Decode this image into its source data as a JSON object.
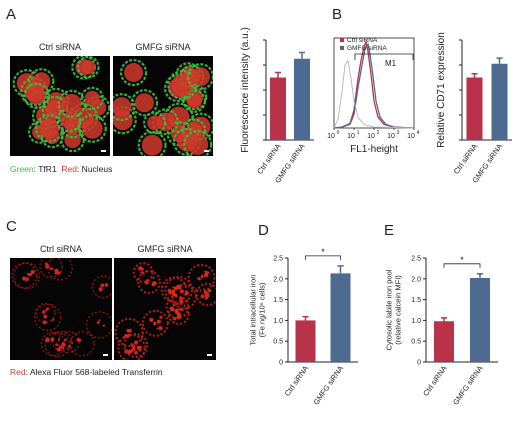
{
  "colors": {
    "ctrl": "#b8334a",
    "gmfg": "#4d6a90",
    "green": "#3fbf3f",
    "red": "#d03a2a"
  },
  "panels": {
    "A": {
      "letter": "A",
      "images": {
        "left_label": "Ctrl siRNA",
        "right_label": "GMFG siRNA"
      },
      "legend": {
        "green_word": "Green",
        "green_target": ": TfR1",
        "red_word": "Red",
        "red_target": ": Nucleus"
      }
    },
    "B": {
      "letter": "B",
      "legend": [
        "Ctrl siRNA",
        "GMFG siRNA"
      ],
      "gate_label": "M1",
      "xlabel": "FL1-height",
      "xticks": [
        "10",
        "10",
        "10",
        "10",
        "10"
      ],
      "xtick_exp": [
        "0",
        "1",
        "2",
        "3",
        "4"
      ]
    },
    "C": {
      "letter": "C",
      "images": {
        "left_label": "Ctrl siRNA",
        "right_label": "GMFG siRNA"
      },
      "legend": {
        "red_word": "Red",
        "red_target": ": Alexa Fluor 568-labeled Transferrin"
      }
    },
    "D": {
      "letter": "D"
    },
    "E": {
      "letter": "E"
    }
  },
  "chart_data": [
    {
      "id": "A-bar",
      "type": "bar",
      "categories": [
        "Ctrl siRNA",
        "GMFG siRNA"
      ],
      "values": [
        1.0,
        1.3
      ],
      "errors": [
        0.08,
        0.1
      ],
      "ylabel": "Fluorescence intensity (a.u.)",
      "ylim": [
        0,
        1.6
      ],
      "significance": ""
    },
    {
      "id": "B-bar",
      "type": "bar",
      "categories": [
        "Ctrl siRNA",
        "GMFG siRNA"
      ],
      "values": [
        1.0,
        1.22
      ],
      "errors": [
        0.06,
        0.09
      ],
      "ylabel": "Relative CD71 expression",
      "ylim": [
        0,
        1.6
      ],
      "significance": ""
    },
    {
      "id": "D-bar",
      "type": "bar",
      "categories": [
        "Ctrl siRNA",
        "GMFG siRNA"
      ],
      "values": [
        1.0,
        2.13
      ],
      "errors": [
        0.09,
        0.18
      ],
      "ylabel_lines": [
        "Total intracellular iron",
        "(Fe ng/10⁶ cells)"
      ],
      "yticks": [
        "0",
        "0.5",
        "1.0",
        "1.5",
        "2.0",
        "2.5"
      ],
      "ylim": [
        0,
        2.5
      ],
      "significance": "*"
    },
    {
      "id": "E-bar",
      "type": "bar",
      "categories": [
        "Ctrl siRNA",
        "GMFG siRNA"
      ],
      "values": [
        0.98,
        2.02
      ],
      "errors": [
        0.08,
        0.1
      ],
      "ylabel_lines": [
        "Cytosolic labile iron pool",
        "(relative calcein MFI)"
      ],
      "yticks": [
        "0",
        "0.5",
        "1.0",
        "1.5",
        "2.0",
        "2.5"
      ],
      "ylim": [
        0,
        2.5
      ],
      "significance": "*"
    },
    {
      "id": "B-histogram",
      "type": "line",
      "series": [
        {
          "name": "Ctrl siRNA",
          "x": [
            0,
            0.4,
            0.8,
            1.0,
            1.2,
            1.35,
            1.5,
            1.6,
            1.7,
            1.85,
            2.0,
            2.2,
            2.5,
            3.0,
            4.0
          ],
          "y": [
            0,
            1,
            5,
            20,
            55,
            75,
            90,
            96,
            85,
            60,
            30,
            12,
            4,
            1,
            0
          ]
        },
        {
          "name": "GMFG siRNA",
          "x": [
            0,
            0.4,
            0.8,
            1.0,
            1.2,
            1.4,
            1.55,
            1.7,
            1.8,
            1.95,
            2.1,
            2.3,
            2.6,
            3.0,
            4.0
          ],
          "y": [
            0,
            1,
            4,
            15,
            45,
            70,
            88,
            93,
            82,
            58,
            30,
            12,
            4,
            1,
            0
          ]
        },
        {
          "name": "",
          "x": [
            0,
            0.2,
            0.4,
            0.55,
            0.7,
            0.85,
            1.0,
            1.2,
            1.5,
            2.0,
            4.0
          ],
          "y": [
            0,
            10,
            40,
            70,
            75,
            55,
            30,
            12,
            4,
            1,
            0
          ]
        }
      ],
      "gate": [
        1.05,
        4.0
      ],
      "xlim": [
        0,
        4
      ],
      "ylim": [
        0,
        100
      ]
    }
  ]
}
